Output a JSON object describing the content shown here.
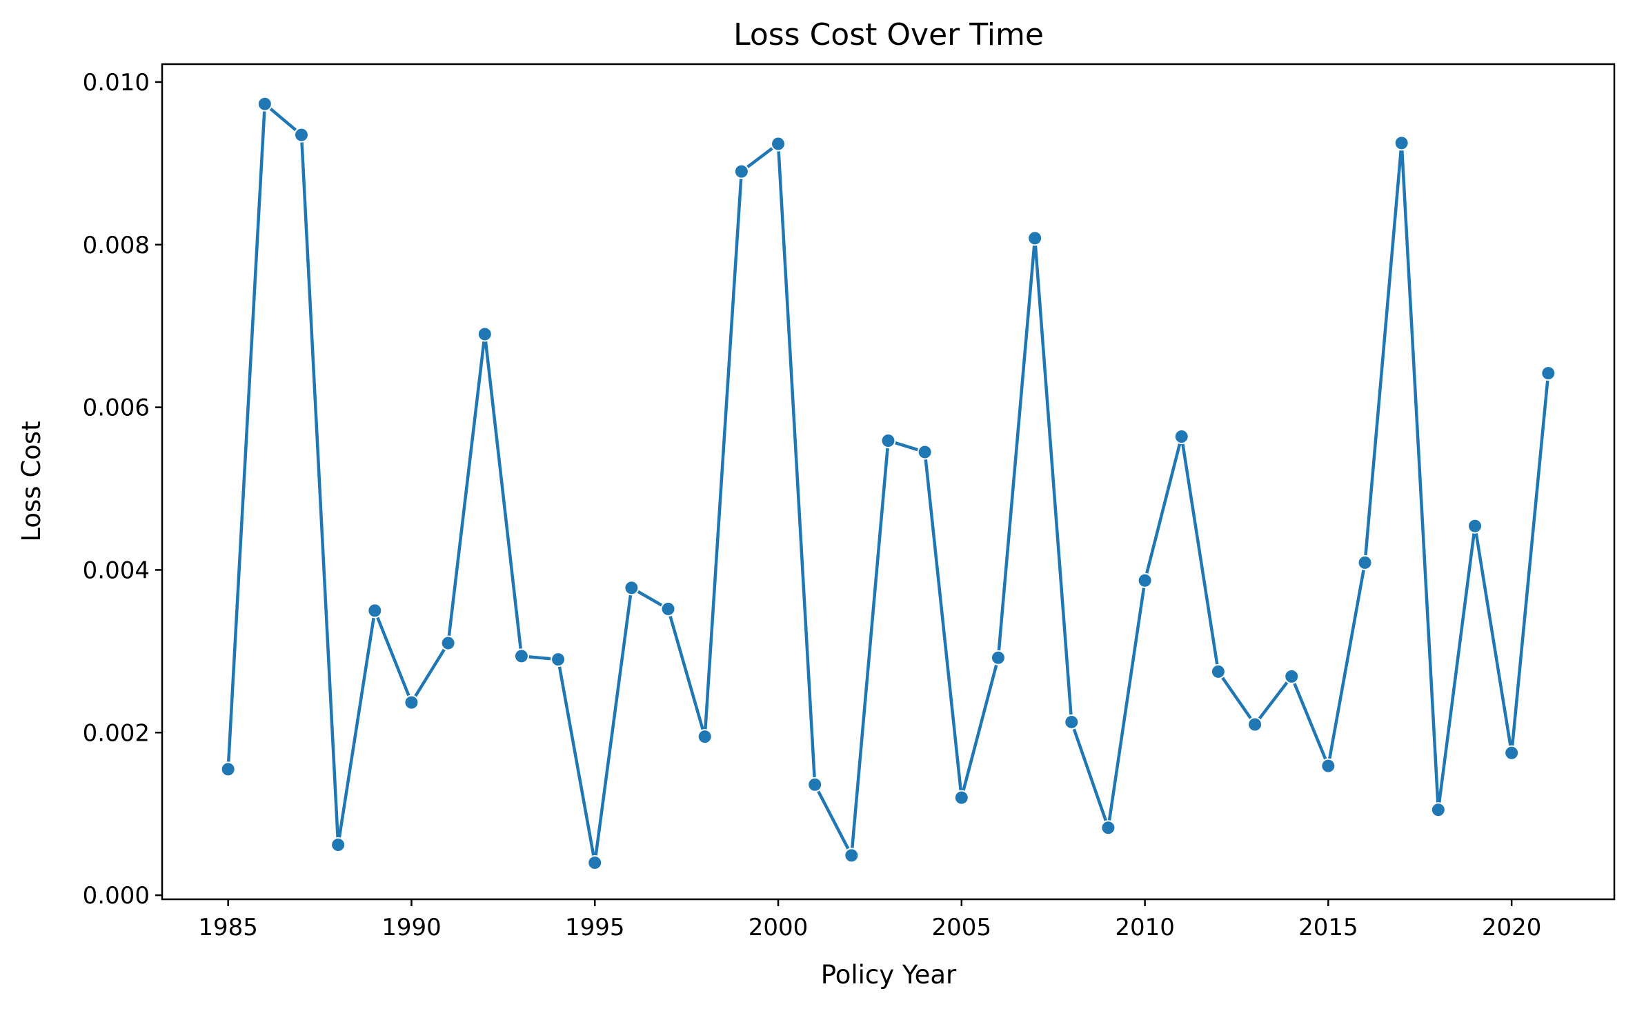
{
  "chart_data": {
    "type": "line",
    "title": "Loss Cost Over Time",
    "xlabel": "Policy Year",
    "ylabel": "Loss Cost",
    "x": [
      1985,
      1986,
      1987,
      1988,
      1989,
      1990,
      1991,
      1992,
      1993,
      1994,
      1995,
      1996,
      1997,
      1998,
      1999,
      2000,
      2001,
      2002,
      2003,
      2004,
      2005,
      2006,
      2007,
      2008,
      2009,
      2010,
      2011,
      2012,
      2013,
      2014,
      2015,
      2016,
      2017,
      2018,
      2019,
      2020,
      2021
    ],
    "series": [
      {
        "values": [
          0.00155,
          0.00973,
          0.00935,
          0.00062,
          0.0035,
          0.00237,
          0.0031,
          0.0069,
          0.00294,
          0.0029,
          0.0004,
          0.00378,
          0.00352,
          0.00195,
          0.0089,
          0.00924,
          0.00136,
          0.00049,
          0.00559,
          0.00545,
          0.0012,
          0.00292,
          0.00808,
          0.00213,
          0.00083,
          0.00387,
          0.00564,
          0.00275,
          0.0021,
          0.00269,
          0.00159,
          0.00409,
          0.00925,
          0.00105,
          0.00454,
          0.00175,
          0.00642
        ],
        "color": "#1f77b4"
      }
    ],
    "xlim": [
      1983.2,
      2022.8
    ],
    "ylim": [
      -5e-05,
      0.01022
    ],
    "x_ticks": [
      "1985",
      "1990",
      "1995",
      "2000",
      "2005",
      "2010",
      "2015",
      "2020"
    ],
    "y_ticks": [
      "0.000",
      "0.002",
      "0.004",
      "0.006",
      "0.008",
      "0.010"
    ],
    "grid": false,
    "marker": "circle"
  }
}
